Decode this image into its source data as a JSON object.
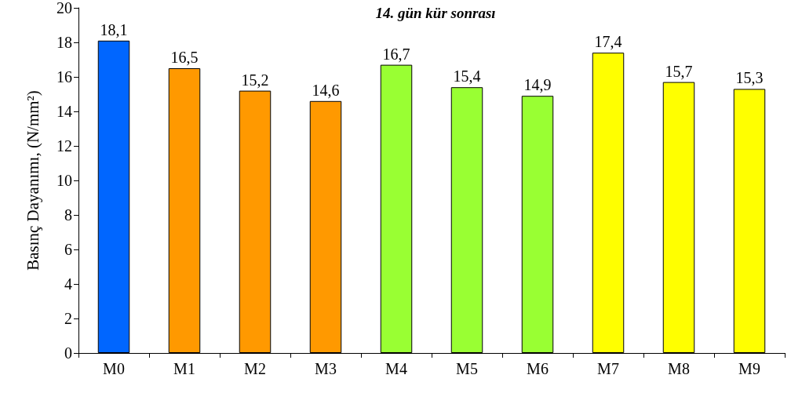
{
  "chart_data": {
    "type": "bar",
    "title": "14. gün kür sonrası",
    "ylabel": "Basınç Dayanımı, (N/mm²)",
    "categories": [
      "M0",
      "M1",
      "M2",
      "M3",
      "M4",
      "M5",
      "M6",
      "M7",
      "M8",
      "M9"
    ],
    "values": [
      18.1,
      16.5,
      15.2,
      14.6,
      16.7,
      15.4,
      14.9,
      17.4,
      15.7,
      15.3
    ],
    "value_labels": [
      "18,1",
      "16,5",
      "15,2",
      "14,6",
      "16,7",
      "15,4",
      "14,9",
      "17,4",
      "15,7",
      "15,3"
    ],
    "colors": [
      "#0066ff",
      "#ff9900",
      "#ff9900",
      "#ff9900",
      "#99ff33",
      "#99ff33",
      "#99ff33",
      "#ffff00",
      "#ffff00",
      "#ffff00"
    ],
    "ylim": [
      0,
      20
    ],
    "yticks": [
      0,
      2,
      4,
      6,
      8,
      10,
      12,
      14,
      16,
      18,
      20
    ]
  }
}
